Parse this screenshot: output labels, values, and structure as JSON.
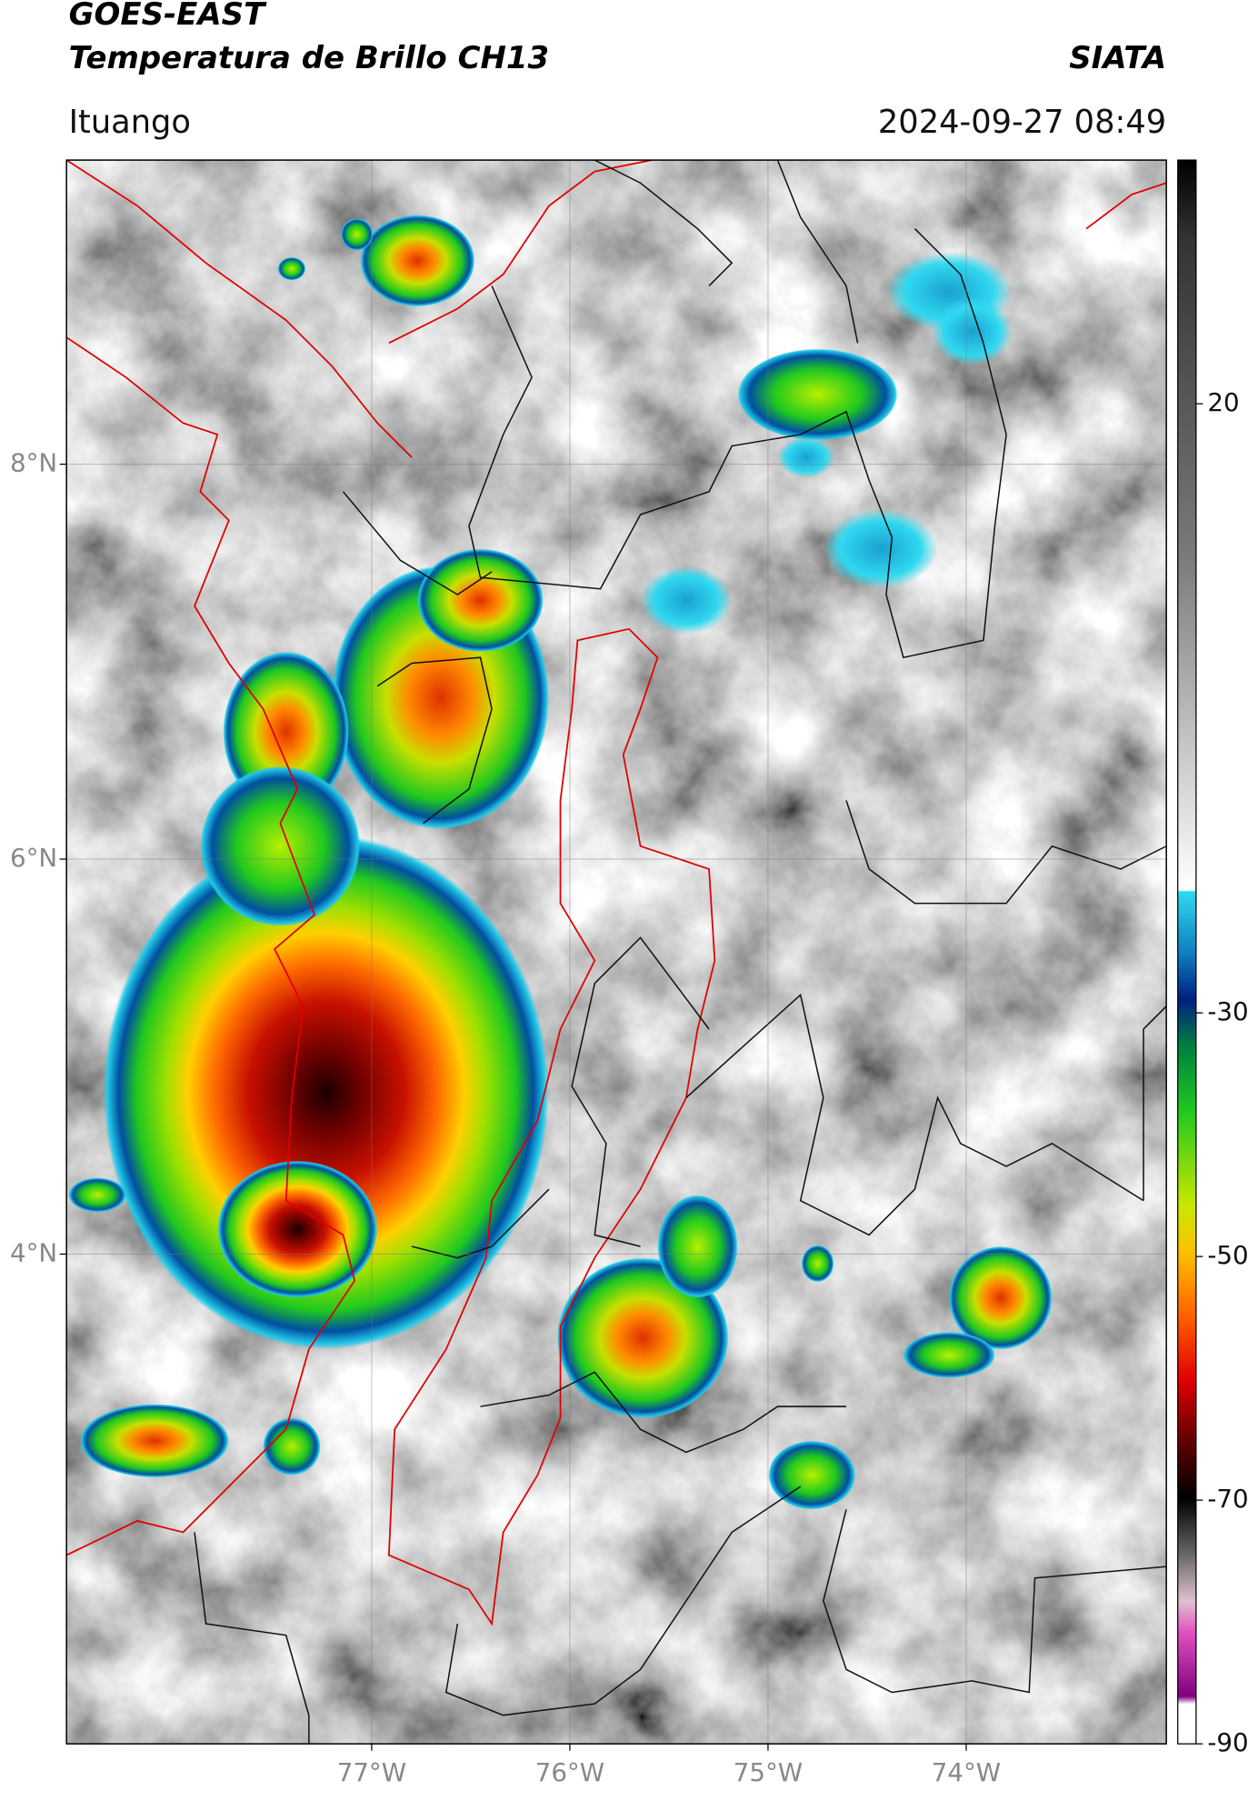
{
  "header": {
    "title": "GOES-EAST",
    "subtitle": "Temperatura de Brillo CH13",
    "source": "SIATA",
    "region": "Ituango",
    "timestamp": "2024-09-27 08:49"
  },
  "map": {
    "xlim": [
      -78.54,
      -72.99
    ],
    "ylim": [
      1.52,
      9.54
    ],
    "xticks": [
      {
        "value": -77,
        "label": "77°W"
      },
      {
        "value": -76,
        "label": "76°W"
      },
      {
        "value": -75,
        "label": "75°W"
      },
      {
        "value": -74,
        "label": "74°W"
      }
    ],
    "yticks": [
      {
        "value": 8,
        "label": "8°N"
      },
      {
        "value": 6,
        "label": "6°N"
      },
      {
        "value": 4,
        "label": "4°N"
      }
    ],
    "grid": true
  },
  "colorbar": {
    "clim": [
      -90,
      40
    ],
    "ticks": [
      20,
      -30,
      -50,
      -70,
      -90
    ]
  }
}
